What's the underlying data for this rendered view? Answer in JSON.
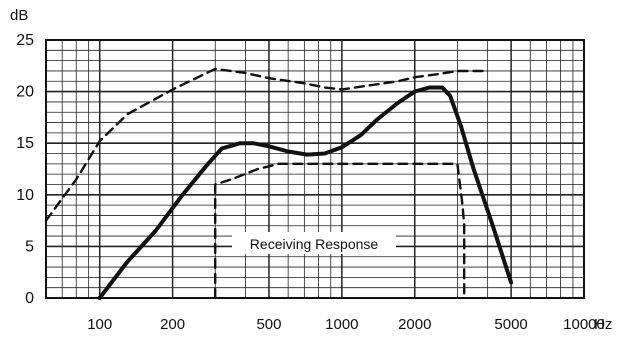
{
  "chart_data": {
    "type": "line",
    "title": "",
    "xlabel": "",
    "ylabel": "",
    "y_unit_label": "dB",
    "x_unit_label": "Hz",
    "x_scale": "log",
    "xlim": [
      60,
      10000
    ],
    "ylim": [
      0,
      25
    ],
    "grid": true,
    "y_ticks": [
      0,
      5,
      10,
      15,
      20,
      25
    ],
    "y_tick_labels": [
      "0",
      "5",
      "10",
      "15",
      "20",
      "25"
    ],
    "x_ticks": [
      100,
      200,
      500,
      1000,
      2000,
      5000,
      10000
    ],
    "x_tick_labels": [
      "100",
      "200",
      "500",
      "1000",
      "2000",
      "5000",
      "10000"
    ],
    "annotation": "Receiving Response",
    "series": [
      {
        "style": "solid-thick",
        "x": [
          100,
          130,
          170,
          220,
          280,
          320,
          380,
          430,
          500,
          600,
          720,
          850,
          1000,
          1200,
          1400,
          1700,
          2000,
          2300,
          2600,
          2800,
          3100,
          3500,
          4200,
          5000
        ],
        "y": [
          0,
          3.5,
          6.5,
          10,
          13,
          14.5,
          15.0,
          15.0,
          14.7,
          14.2,
          13.9,
          14.0,
          14.6,
          15.8,
          17.3,
          18.9,
          20.0,
          20.4,
          20.4,
          19.6,
          16.7,
          12.5,
          7.0,
          1.5
        ]
      },
      {
        "style": "dashed-upper",
        "x": [
          60,
          80,
          100,
          130,
          200,
          300,
          400,
          500,
          700,
          850,
          1000,
          1300,
          1700,
          2000,
          2500,
          3000,
          3500,
          4000
        ],
        "y": [
          7.5,
          11.5,
          15.2,
          17.8,
          20.2,
          22.2,
          21.8,
          21.3,
          20.8,
          20.4,
          20.2,
          20.6,
          21.0,
          21.4,
          21.7,
          22.0,
          22.0,
          22.0
        ]
      },
      {
        "style": "dashed-lower-mask",
        "x": [
          300,
          300,
          350,
          450,
          550,
          700,
          1000,
          1500,
          2000,
          2500,
          2900,
          3000,
          3150,
          3200,
          3200
        ],
        "y": [
          0,
          11.0,
          11.5,
          12.5,
          13.0,
          13.0,
          13.0,
          13.0,
          13.0,
          13.0,
          13.0,
          13.0,
          9.0,
          7.0,
          0
        ]
      }
    ]
  }
}
